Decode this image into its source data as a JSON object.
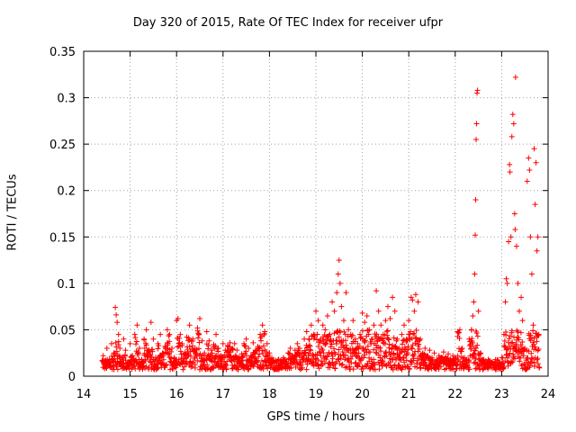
{
  "chart_data": {
    "type": "scatter",
    "title": "Day 320 of 2015, Rate Of TEC Index for receiver ufpr",
    "xlabel": "GPS time / hours",
    "ylabel": "ROTI / TECUs",
    "xlim": [
      14,
      24
    ],
    "ylim": [
      0,
      0.35
    ],
    "xticks": [
      "14",
      "15",
      "16",
      "17",
      "18",
      "19",
      "20",
      "21",
      "22",
      "23",
      "24"
    ],
    "yticks": [
      "0",
      "0.05",
      "0.1",
      "0.15",
      "0.2",
      "0.25",
      "0.3",
      "0.35"
    ],
    "grid": true,
    "marker": "+",
    "marker_color": "#ff0000",
    "series": [
      {
        "name": "ROTI",
        "points": [
          [
            14.42,
            0.022
          ],
          [
            14.45,
            0.012
          ],
          [
            14.5,
            0.03
          ],
          [
            14.55,
            0.018
          ],
          [
            14.6,
            0.035
          ],
          [
            14.65,
            0.025
          ],
          [
            14.68,
            0.074
          ],
          [
            14.7,
            0.066
          ],
          [
            14.72,
            0.058
          ],
          [
            14.75,
            0.045
          ],
          [
            14.78,
            0.03
          ],
          [
            14.82,
            0.02
          ],
          [
            14.86,
            0.04
          ],
          [
            14.9,
            0.028
          ],
          [
            14.95,
            0.015
          ],
          [
            15.0,
            0.035
          ],
          [
            15.05,
            0.022
          ],
          [
            15.1,
            0.045
          ],
          [
            15.15,
            0.055
          ],
          [
            15.2,
            0.03
          ],
          [
            15.25,
            0.018
          ],
          [
            15.3,
            0.04
          ],
          [
            15.35,
            0.05
          ],
          [
            15.4,
            0.028
          ],
          [
            15.45,
            0.058
          ],
          [
            15.5,
            0.04
          ],
          [
            15.55,
            0.02
          ],
          [
            15.6,
            0.035
          ],
          [
            15.65,
            0.045
          ],
          [
            15.7,
            0.025
          ],
          [
            15.75,
            0.032
          ],
          [
            15.8,
            0.05
          ],
          [
            15.85,
            0.045
          ],
          [
            15.9,
            0.03
          ],
          [
            15.95,
            0.02
          ],
          [
            16.0,
            0.06
          ],
          [
            16.03,
            0.062
          ],
          [
            16.08,
            0.045
          ],
          [
            16.12,
            0.035
          ],
          [
            16.18,
            0.025
          ],
          [
            16.22,
            0.042
          ],
          [
            16.28,
            0.055
          ],
          [
            16.35,
            0.04
          ],
          [
            16.4,
            0.03
          ],
          [
            16.45,
            0.052
          ],
          [
            16.5,
            0.062
          ],
          [
            16.55,
            0.038
          ],
          [
            16.6,
            0.025
          ],
          [
            16.65,
            0.048
          ],
          [
            16.7,
            0.038
          ],
          [
            16.75,
            0.028
          ],
          [
            16.8,
            0.034
          ],
          [
            16.85,
            0.045
          ],
          [
            16.9,
            0.03
          ],
          [
            16.95,
            0.022
          ],
          [
            17.0,
            0.035
          ],
          [
            17.05,
            0.028
          ],
          [
            17.1,
            0.033
          ],
          [
            17.15,
            0.036
          ],
          [
            17.2,
            0.03
          ],
          [
            17.25,
            0.035
          ],
          [
            17.3,
            0.028
          ],
          [
            17.35,
            0.02
          ],
          [
            17.4,
            0.024
          ],
          [
            17.45,
            0.035
          ],
          [
            17.5,
            0.04
          ],
          [
            17.55,
            0.03
          ],
          [
            17.6,
            0.022
          ],
          [
            17.65,
            0.036
          ],
          [
            17.7,
            0.028
          ],
          [
            17.75,
            0.032
          ],
          [
            17.8,
            0.045
          ],
          [
            17.85,
            0.055
          ],
          [
            17.9,
            0.048
          ],
          [
            17.95,
            0.035
          ],
          [
            18.0,
            0.025
          ],
          [
            18.05,
            0.02
          ],
          [
            18.1,
            0.015
          ],
          [
            18.15,
            0.012
          ],
          [
            18.2,
            0.018
          ],
          [
            18.25,
            0.014
          ],
          [
            18.3,
            0.02
          ],
          [
            18.35,
            0.016
          ],
          [
            18.4,
            0.025
          ],
          [
            18.45,
            0.03
          ],
          [
            18.5,
            0.022
          ],
          [
            18.55,
            0.028
          ],
          [
            18.6,
            0.035
          ],
          [
            18.65,
            0.03
          ],
          [
            18.7,
            0.025
          ],
          [
            18.75,
            0.04
          ],
          [
            18.8,
            0.048
          ],
          [
            18.85,
            0.04
          ],
          [
            18.9,
            0.055
          ],
          [
            18.95,
            0.045
          ],
          [
            19.0,
            0.07
          ],
          [
            19.05,
            0.06
          ],
          [
            19.1,
            0.04
          ],
          [
            19.15,
            0.055
          ],
          [
            19.2,
            0.05
          ],
          [
            19.25,
            0.065
          ],
          [
            19.3,
            0.045
          ],
          [
            19.35,
            0.08
          ],
          [
            19.4,
            0.07
          ],
          [
            19.45,
            0.09
          ],
          [
            19.48,
            0.11
          ],
          [
            19.5,
            0.125
          ],
          [
            19.52,
            0.1
          ],
          [
            19.55,
            0.075
          ],
          [
            19.6,
            0.06
          ],
          [
            19.65,
            0.09
          ],
          [
            19.7,
            0.05
          ],
          [
            19.75,
            0.045
          ],
          [
            19.8,
            0.06
          ],
          [
            19.85,
            0.04
          ],
          [
            19.9,
            0.035
          ],
          [
            19.95,
            0.045
          ],
          [
            20.0,
            0.068
          ],
          [
            20.05,
            0.058
          ],
          [
            20.1,
            0.065
          ],
          [
            20.15,
            0.05
          ],
          [
            20.2,
            0.04
          ],
          [
            20.25,
            0.055
          ],
          [
            20.3,
            0.092
          ],
          [
            20.35,
            0.07
          ],
          [
            20.4,
            0.055
          ],
          [
            20.45,
            0.045
          ],
          [
            20.5,
            0.06
          ],
          [
            20.55,
            0.075
          ],
          [
            20.6,
            0.062
          ],
          [
            20.65,
            0.085
          ],
          [
            20.7,
            0.07
          ],
          [
            20.75,
            0.04
          ],
          [
            20.8,
            0.03
          ],
          [
            20.85,
            0.045
          ],
          [
            20.9,
            0.055
          ],
          [
            20.95,
            0.04
          ],
          [
            21.0,
            0.06
          ],
          [
            21.05,
            0.085
          ],
          [
            21.08,
            0.082
          ],
          [
            21.12,
            0.07
          ],
          [
            21.15,
            0.088
          ],
          [
            21.2,
            0.08
          ],
          [
            21.25,
            0.04
          ],
          [
            21.3,
            0.025
          ],
          [
            21.35,
            0.03
          ],
          [
            21.4,
            0.022
          ],
          [
            21.45,
            0.028
          ],
          [
            21.5,
            0.02
          ],
          [
            21.55,
            0.025
          ],
          [
            21.6,
            0.018
          ],
          [
            21.65,
            0.022
          ],
          [
            21.7,
            0.02
          ],
          [
            21.75,
            0.026
          ],
          [
            21.8,
            0.02
          ],
          [
            21.85,
            0.024
          ],
          [
            21.9,
            0.018
          ],
          [
            21.95,
            0.022
          ],
          [
            22.0,
            0.02
          ],
          [
            22.05,
            0.048
          ],
          [
            22.1,
            0.05
          ],
          [
            22.15,
            0.03
          ],
          [
            22.2,
            0.02
          ],
          [
            22.25,
            0.018
          ],
          [
            22.3,
            0.04
          ],
          [
            22.35,
            0.05
          ],
          [
            22.38,
            0.065
          ],
          [
            22.4,
            0.08
          ],
          [
            22.42,
            0.11
          ],
          [
            22.43,
            0.152
          ],
          [
            22.44,
            0.19
          ],
          [
            22.45,
            0.255
          ],
          [
            22.46,
            0.272
          ],
          [
            22.47,
            0.305
          ],
          [
            22.48,
            0.308
          ],
          [
            22.5,
            0.07
          ],
          [
            22.55,
            0.025
          ],
          [
            22.6,
            0.015
          ],
          [
            22.7,
            0.012
          ],
          [
            22.8,
            0.015
          ],
          [
            22.9,
            0.012
          ],
          [
            23.0,
            0.02
          ],
          [
            23.05,
            0.045
          ],
          [
            23.08,
            0.08
          ],
          [
            23.1,
            0.105
          ],
          [
            23.12,
            0.1
          ],
          [
            23.15,
            0.145
          ],
          [
            23.17,
            0.228
          ],
          [
            23.18,
            0.22
          ],
          [
            23.2,
            0.15
          ],
          [
            23.22,
            0.258
          ],
          [
            23.24,
            0.282
          ],
          [
            23.26,
            0.272
          ],
          [
            23.28,
            0.175
          ],
          [
            23.29,
            0.158
          ],
          [
            23.3,
            0.322
          ],
          [
            23.32,
            0.14
          ],
          [
            23.35,
            0.1
          ],
          [
            23.38,
            0.07
          ],
          [
            23.42,
            0.085
          ],
          [
            23.45,
            0.06
          ],
          [
            23.5,
            0.03
          ],
          [
            23.55,
            0.21
          ],
          [
            23.58,
            0.235
          ],
          [
            23.6,
            0.222
          ],
          [
            23.62,
            0.15
          ],
          [
            23.65,
            0.11
          ],
          [
            23.68,
            0.055
          ],
          [
            23.7,
            0.245
          ],
          [
            23.72,
            0.185
          ],
          [
            23.74,
            0.23
          ],
          [
            23.76,
            0.135
          ],
          [
            23.78,
            0.15
          ],
          [
            23.8,
            0.045
          ]
        ]
      }
    ]
  }
}
